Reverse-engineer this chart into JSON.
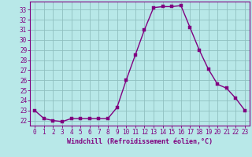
{
  "x": [
    0,
    1,
    2,
    3,
    4,
    5,
    6,
    7,
    8,
    9,
    10,
    11,
    12,
    13,
    14,
    15,
    16,
    17,
    18,
    19,
    20,
    21,
    22,
    23
  ],
  "y": [
    23.0,
    22.2,
    22.0,
    21.9,
    22.2,
    22.2,
    22.2,
    22.2,
    22.2,
    23.3,
    26.0,
    28.5,
    31.0,
    33.2,
    33.3,
    33.3,
    33.4,
    31.2,
    29.0,
    27.1,
    25.6,
    25.2,
    24.2,
    23.0
  ],
  "line_color": "#800080",
  "marker_color": "#800080",
  "bg_color": "#b8e8e8",
  "grid_color": "#90c0c0",
  "xlabel": "Windchill (Refroidissement éolien,°C)",
  "ylim": [
    21.5,
    33.8
  ],
  "yticks": [
    22,
    23,
    24,
    25,
    26,
    27,
    28,
    29,
    30,
    31,
    32,
    33
  ],
  "xticks": [
    0,
    1,
    2,
    3,
    4,
    5,
    6,
    7,
    8,
    9,
    10,
    11,
    12,
    13,
    14,
    15,
    16,
    17,
    18,
    19,
    20,
    21,
    22,
    23
  ],
  "xlim": [
    -0.5,
    23.5
  ],
  "tick_fontsize": 5.5,
  "xlabel_fontsize": 6.0,
  "marker_size": 2.5,
  "line_width": 1.0
}
